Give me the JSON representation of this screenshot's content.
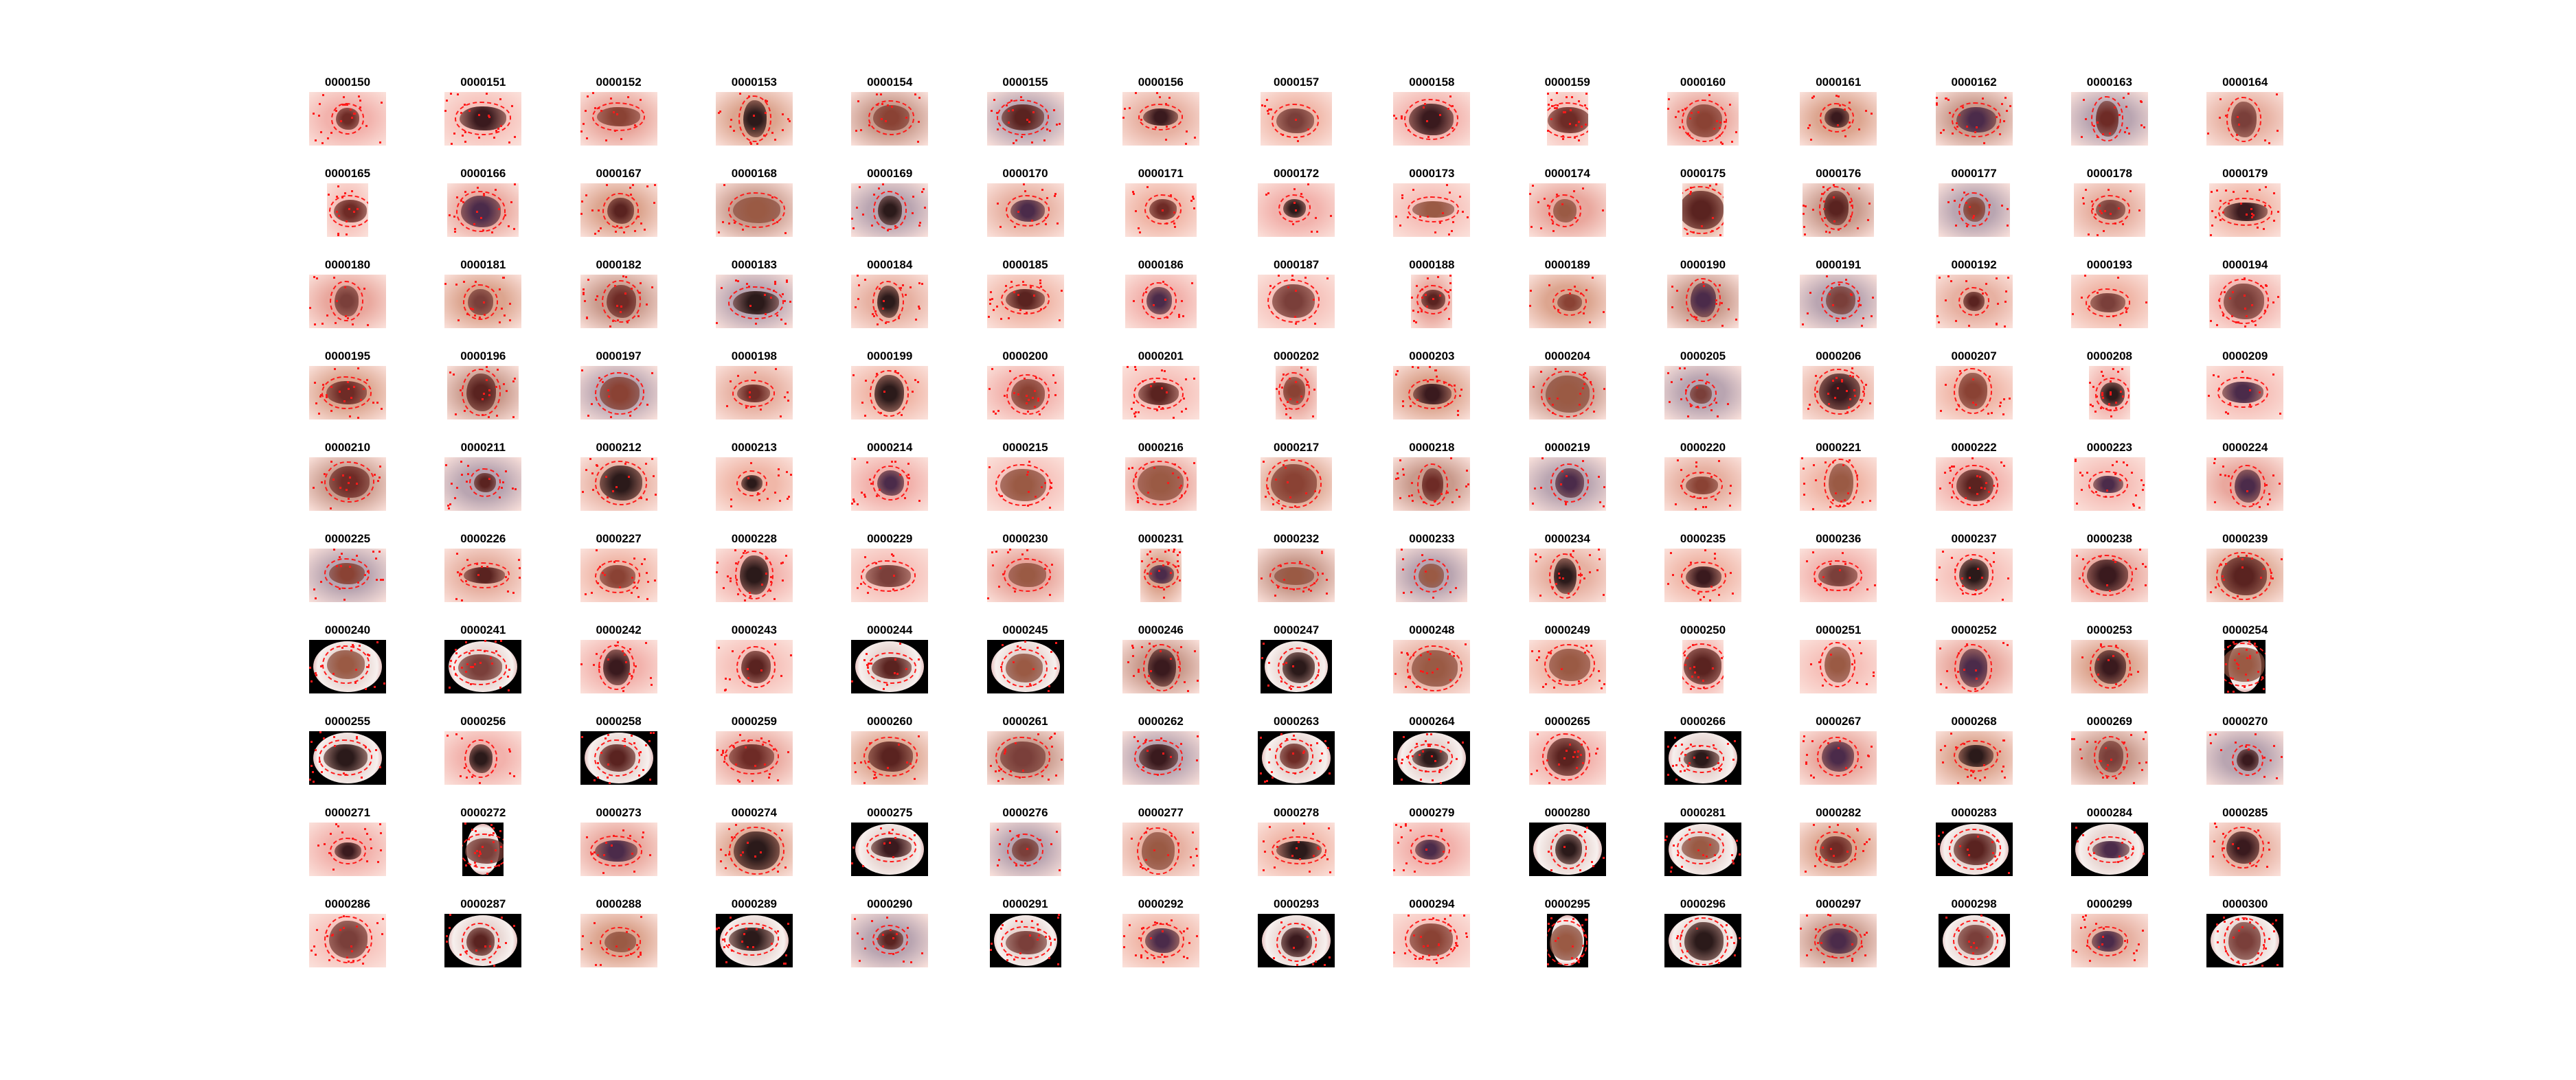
{
  "grid": {
    "columns": 15,
    "labels": [
      "0000150",
      "0000151",
      "0000152",
      "0000153",
      "0000154",
      "0000155",
      "0000156",
      "0000157",
      "0000158",
      "0000159",
      "0000160",
      "0000161",
      "0000162",
      "0000163",
      "0000164",
      "0000165",
      "0000166",
      "0000167",
      "0000168",
      "0000169",
      "0000170",
      "0000171",
      "0000172",
      "0000173",
      "0000174",
      "0000175",
      "0000176",
      "0000177",
      "0000178",
      "0000179",
      "0000180",
      "0000181",
      "0000182",
      "0000183",
      "0000184",
      "0000185",
      "0000186",
      "0000187",
      "0000188",
      "0000189",
      "0000190",
      "0000191",
      "0000192",
      "0000193",
      "0000194",
      "0000195",
      "0000196",
      "0000197",
      "0000198",
      "0000199",
      "0000200",
      "0000201",
      "0000202",
      "0000203",
      "0000204",
      "0000205",
      "0000206",
      "0000207",
      "0000208",
      "0000209",
      "0000210",
      "0000211",
      "0000212",
      "0000213",
      "0000214",
      "0000215",
      "0000216",
      "0000217",
      "0000218",
      "0000219",
      "0000220",
      "0000221",
      "0000222",
      "0000223",
      "0000224",
      "0000225",
      "0000226",
      "0000227",
      "0000228",
      "0000229",
      "0000230",
      "0000231",
      "0000232",
      "0000233",
      "0000234",
      "0000235",
      "0000236",
      "0000237",
      "0000238",
      "0000239",
      "0000240",
      "0000241",
      "0000242",
      "0000243",
      "0000244",
      "0000245",
      "0000246",
      "0000247",
      "0000248",
      "0000249",
      "0000250",
      "0000251",
      "0000252",
      "0000253",
      "0000254",
      "0000255",
      "0000256",
      "0000258",
      "0000259",
      "0000260",
      "0000261",
      "0000262",
      "0000263",
      "0000264",
      "0000265",
      "0000266",
      "0000267",
      "0000268",
      "0000269",
      "0000270",
      "0000271",
      "0000272",
      "0000273",
      "0000274",
      "0000275",
      "0000276",
      "0000277",
      "0000278",
      "0000279",
      "0000280",
      "0000281",
      "0000282",
      "0000283",
      "0000284",
      "0000285",
      "0000286",
      "0000287",
      "0000288",
      "0000289",
      "0000290",
      "0000291",
      "0000292",
      "0000293",
      "0000294",
      "0000295",
      "0000296",
      "0000297",
      "0000298",
      "0000299",
      "0000300"
    ]
  },
  "colors": {
    "segmentation_border": "#ff1a1a",
    "skin_pink": "#f4b3b0",
    "skin_gray": "#a9a6b8",
    "skin_tan": "#d9a48a",
    "circular_black": "#000000"
  }
}
